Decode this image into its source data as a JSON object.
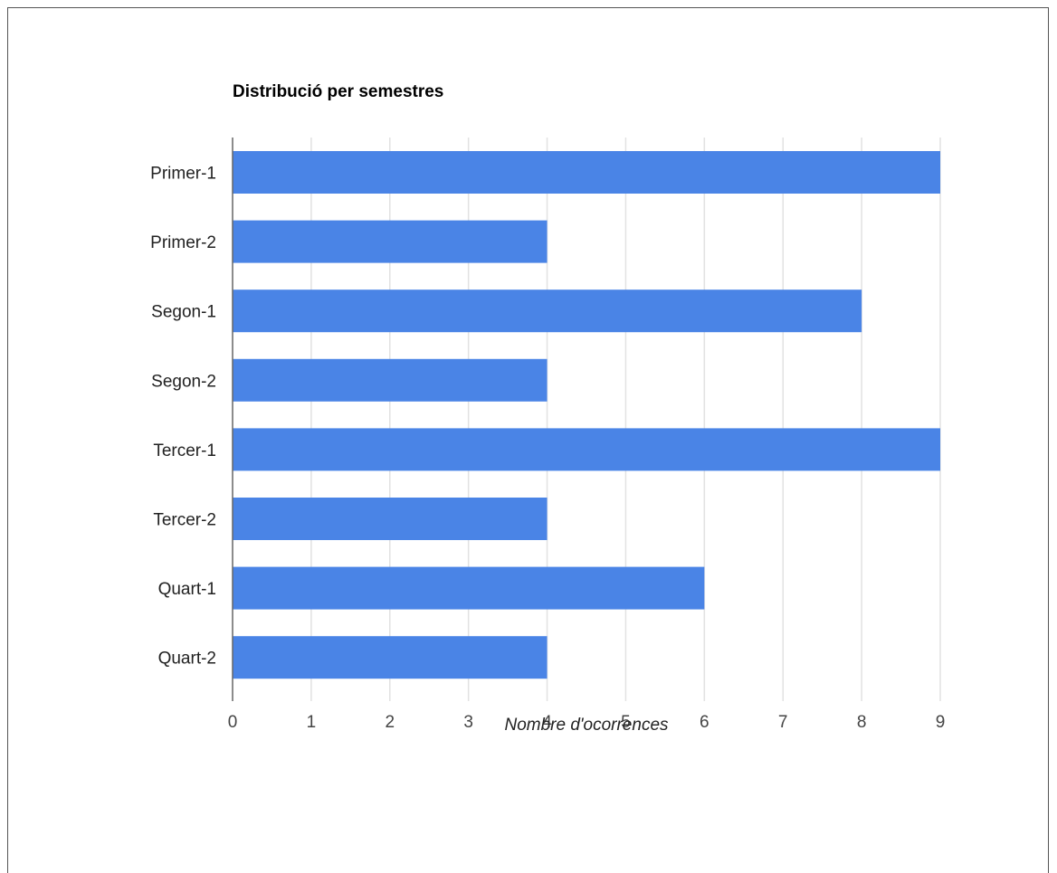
{
  "chart_data": {
    "type": "bar",
    "orientation": "horizontal",
    "title": "Distribució per semestres",
    "xlabel": "Nombre d'ocorrences",
    "ylabel": "",
    "categories": [
      "Primer-1",
      "Primer-2",
      "Segon-1",
      "Segon-2",
      "Tercer-1",
      "Tercer-2",
      "Quart-1",
      "Quart-2"
    ],
    "values": [
      9,
      4,
      8,
      4,
      9,
      4,
      6,
      4
    ],
    "xlim": [
      0,
      9
    ],
    "ticks": [
      0,
      1,
      2,
      3,
      4,
      5,
      6,
      7,
      8,
      9
    ],
    "grid": true,
    "legend": "none",
    "bar_color": "#4a84e6",
    "grid_color": "#e2e2e2",
    "axis_color": "#666666"
  }
}
